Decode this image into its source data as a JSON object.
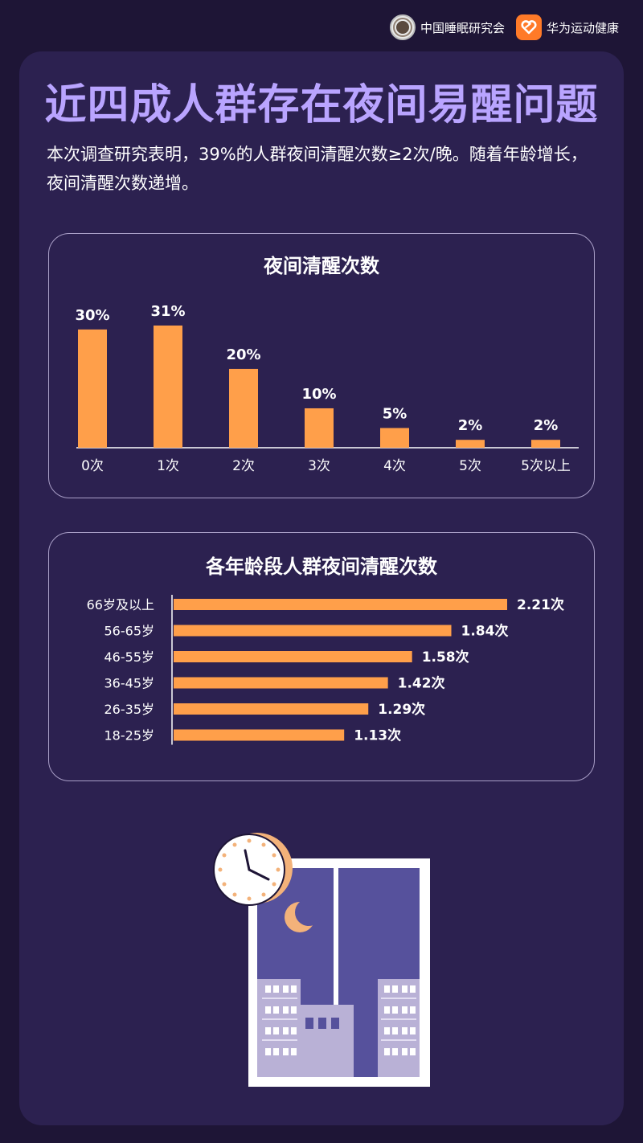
{
  "header": {
    "org_name": "中国睡眠研究会",
    "brand_name": "华为运动健康"
  },
  "title": "近四成人群存在夜间易醒问题",
  "subtitle": "本次调查研究表明，39%的人群夜间清醒次数≥2次/晚。随着年龄增长，夜间清醒次数递增。",
  "colors": {
    "background": "#1e1536",
    "card": "#2c2150",
    "accent": "#ff9f4a",
    "title": "#b9a4ff",
    "brand_orange": "#ff7a28"
  },
  "chart_data": [
    {
      "type": "bar",
      "title": "夜间清醒次数",
      "categories": [
        "0次",
        "1次",
        "2次",
        "3次",
        "4次",
        "5次",
        "5次以上"
      ],
      "values": [
        30,
        31,
        20,
        10,
        5,
        2,
        2
      ],
      "value_labels": [
        "30%",
        "31%",
        "20%",
        "10%",
        "5%",
        "2%",
        "2%"
      ],
      "unit": "%",
      "ylim": [
        0,
        31
      ],
      "color": "#ff9f4a"
    },
    {
      "type": "bar",
      "orientation": "horizontal",
      "title": "各年龄段人群夜间清醒次数",
      "categories": [
        "66岁及以上",
        "56-65岁",
        "46-55岁",
        "36-45岁",
        "26-35岁",
        "18-25岁"
      ],
      "values": [
        2.21,
        1.84,
        1.58,
        1.42,
        1.29,
        1.13
      ],
      "value_labels": [
        "2.21次",
        "1.84次",
        "1.58次",
        "1.42次",
        "1.29次",
        "1.13次"
      ],
      "xlim": [
        0,
        2.21
      ],
      "color": "#ff9f4a"
    }
  ],
  "illustration": {
    "icons": [
      "clock-icon",
      "moon-icon",
      "window-icon",
      "building-icon"
    ]
  }
}
